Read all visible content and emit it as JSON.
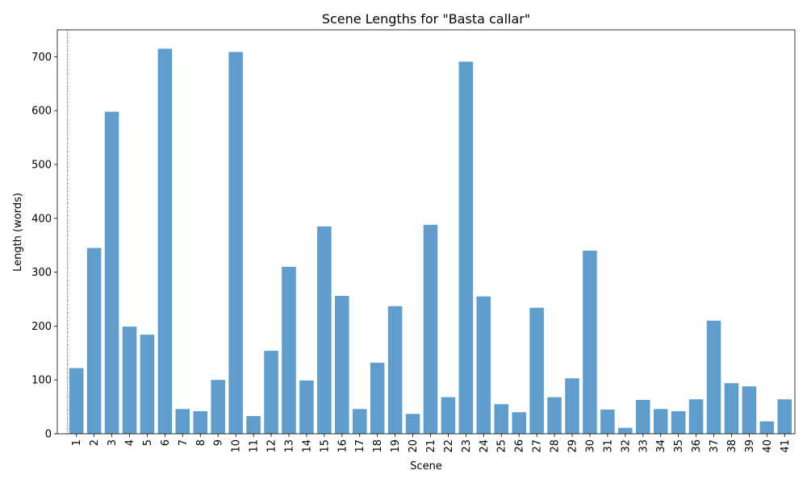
{
  "chart_data": {
    "type": "bar",
    "title": "Scene Lengths for \"Basta callar\"",
    "xlabel": "Scene",
    "ylabel": "Length (words)",
    "categories": [
      "1",
      "2",
      "3",
      "4",
      "5",
      "6",
      "7",
      "8",
      "9",
      "10",
      "11",
      "12",
      "13",
      "14",
      "15",
      "16",
      "17",
      "18",
      "19",
      "20",
      "21",
      "22",
      "23",
      "24",
      "25",
      "26",
      "27",
      "28",
      "29",
      "30",
      "31",
      "32",
      "33",
      "34",
      "35",
      "36",
      "37",
      "38",
      "39",
      "40",
      "41"
    ],
    "values": [
      122,
      345,
      598,
      199,
      184,
      715,
      46,
      42,
      100,
      709,
      33,
      154,
      310,
      99,
      385,
      256,
      46,
      132,
      237,
      37,
      388,
      68,
      691,
      255,
      55,
      40,
      234,
      68,
      103,
      340,
      45,
      11,
      63,
      46,
      42,
      64,
      210,
      94,
      88,
      23,
      64
    ],
    "ylim": [
      0,
      750
    ],
    "yticks": [
      0,
      100,
      200,
      300,
      400,
      500,
      600,
      700
    ],
    "bar_color": "#5f9ecc",
    "reference_line": {
      "x_between_scenes": 0.5,
      "style": "dotted",
      "color": "#000000"
    },
    "grid": false,
    "legend": "none"
  }
}
